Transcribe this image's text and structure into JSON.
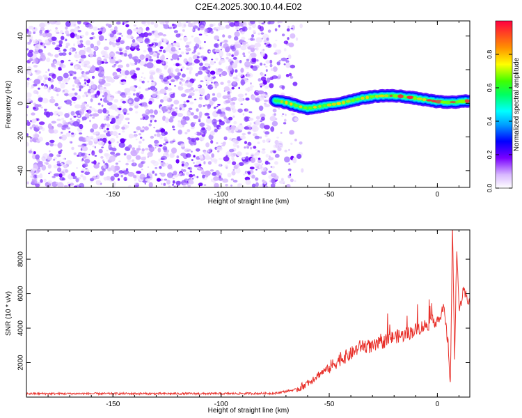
{
  "title": "C2E4.2025.300.10.44.E02",
  "chart_data": [
    {
      "type": "heatmap",
      "name": "spectrogram",
      "xlabel": "Height of straight line (km)",
      "ylabel": "Frequency (Hz)",
      "xlim": [
        -190,
        15
      ],
      "ylim": [
        -50,
        49
      ],
      "xticks": [
        -150,
        -100,
        -50,
        0
      ],
      "yticks": [
        -40,
        -20,
        0,
        20,
        40
      ],
      "noise_region_km": [
        -190,
        -62
      ],
      "signal_start_km": -75,
      "signal_track": {
        "x": [
          -75,
          -70,
          -65,
          -60,
          -55,
          -50,
          -45,
          -40,
          -35,
          -30,
          -25,
          -20,
          -15,
          -10,
          -5,
          0,
          5,
          10,
          15
        ],
        "y": [
          1.5,
          0.5,
          -1.5,
          -3,
          -2,
          -1,
          0,
          1.5,
          3,
          4,
          4.5,
          4.5,
          4,
          3,
          2,
          1,
          0.5,
          1,
          1.5
        ]
      },
      "colorbar": {
        "label": "Normalized spectral amplitude",
        "ticks": [
          0.0,
          0.2,
          0.4,
          0.6,
          0.8
        ],
        "range": [
          0,
          1
        ]
      }
    },
    {
      "type": "line",
      "name": "snr",
      "xlabel": "Height of straight line (km)",
      "ylabel": "SNR (10 * v/v)",
      "xlim": [
        -190,
        15
      ],
      "ylim": [
        0,
        9700
      ],
      "xticks": [
        -150,
        -100,
        -50,
        0
      ],
      "yticks": [
        2000,
        4000,
        6000,
        8000
      ],
      "series": [
        {
          "name": "SNR",
          "color": "#e8302a",
          "x": [
            -190,
            -150,
            -100,
            -75,
            -65,
            -60,
            -55,
            -50,
            -45,
            -40,
            -35,
            -30,
            -25,
            -20,
            -15,
            -10,
            -5,
            0,
            3,
            5,
            6,
            7,
            8,
            9,
            10,
            12,
            15
          ],
          "y": [
            200,
            200,
            200,
            220,
            450,
            800,
            1300,
            1700,
            2200,
            2500,
            3000,
            2900,
            3200,
            3500,
            3600,
            3900,
            4200,
            4500,
            5100,
            3000,
            800,
            9600,
            2500,
            8800,
            5000,
            6100,
            5500
          ]
        }
      ]
    }
  ]
}
